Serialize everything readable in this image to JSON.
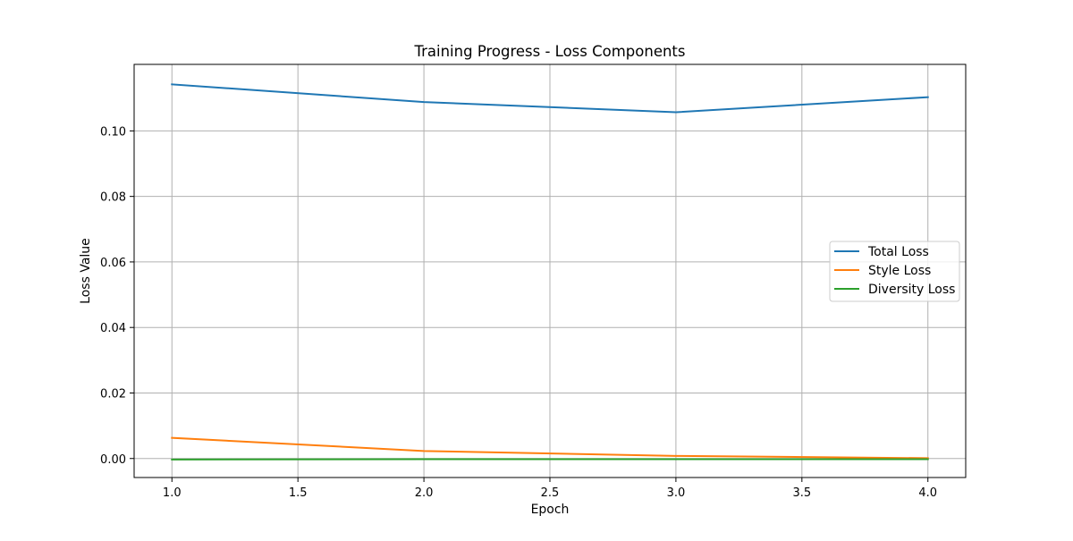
{
  "chart_data": {
    "type": "line",
    "title": "Training Progress - Loss Components",
    "xlabel": "Epoch",
    "ylabel": "Loss Value",
    "x": [
      1,
      2,
      3,
      4
    ],
    "xlim": [
      0.85,
      4.15
    ],
    "ylim": [
      -0.0058,
      0.1203
    ],
    "x_ticks": [
      1.0,
      1.5,
      2.0,
      2.5,
      3.0,
      3.5,
      4.0
    ],
    "x_tick_labels": [
      "1.0",
      "1.5",
      "2.0",
      "2.5",
      "3.0",
      "3.5",
      "4.0"
    ],
    "y_ticks": [
      0.0,
      0.02,
      0.04,
      0.06,
      0.08,
      0.1
    ],
    "y_tick_labels": [
      "0.00",
      "0.02",
      "0.04",
      "0.06",
      "0.08",
      "0.10"
    ],
    "grid": true,
    "legend_position": "center-right",
    "series": [
      {
        "name": "Total Loss",
        "color": "#1f77b4",
        "values": [
          0.1142,
          0.1088,
          0.1057,
          0.1103
        ]
      },
      {
        "name": "Style Loss",
        "color": "#ff7f0e",
        "values": [
          0.0063,
          0.0023,
          0.0008,
          0.0001
        ]
      },
      {
        "name": "Diversity Loss",
        "color": "#2ca02c",
        "values": [
          -0.0003,
          -0.0002,
          -0.0002,
          -0.0002
        ]
      }
    ]
  }
}
